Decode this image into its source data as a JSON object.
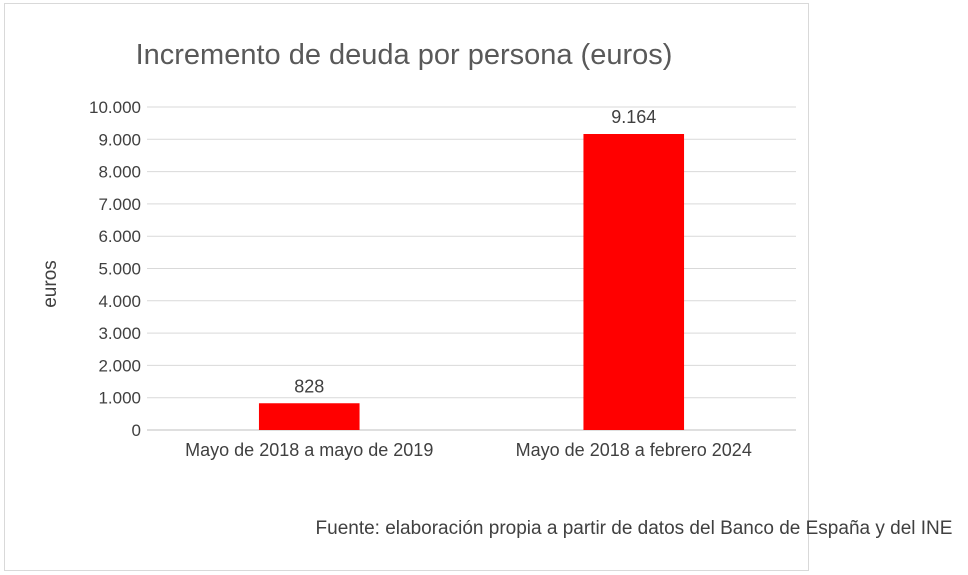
{
  "chart_data": {
    "type": "bar",
    "title": "Incremento de deuda por persona (euros)",
    "ylabel": "euros",
    "xlabel": "",
    "categories": [
      "Mayo de 2018 a mayo de 2019",
      "Mayo de 2018 a febrero 2024"
    ],
    "values": [
      828,
      9164
    ],
    "value_labels": [
      "828",
      "9.164"
    ],
    "ylim": [
      0,
      10000
    ],
    "yticks": [
      0,
      1000,
      2000,
      3000,
      4000,
      5000,
      6000,
      7000,
      8000,
      9000,
      10000
    ],
    "ytick_labels": [
      "0",
      "1.000",
      "2.000",
      "3.000",
      "4.000",
      "5.000",
      "6.000",
      "7.000",
      "8.000",
      "9.000",
      "10.000"
    ],
    "grid": true,
    "legend": "none",
    "bar_color": "#ff0000"
  },
  "source": "Fuente: elaboración propia a partir de datos del Banco de España y del INE"
}
